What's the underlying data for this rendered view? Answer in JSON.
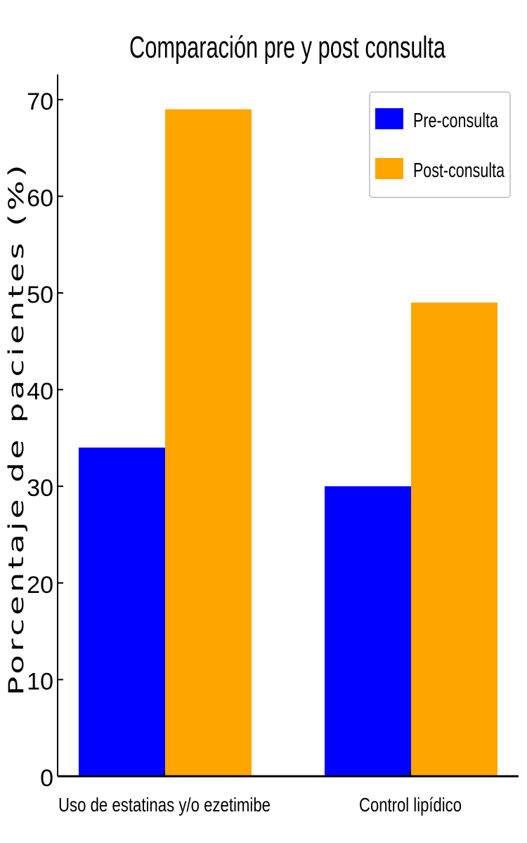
{
  "chart_data": {
    "type": "bar",
    "title": "Comparación pre y post consulta",
    "xlabel": "",
    "ylabel": "Porcentaje de pacientes (%)",
    "categories": [
      "Uso de estatinas y/o ezetimibe",
      "Control lipídico"
    ],
    "series": [
      {
        "name": "Pre-consulta",
        "values": [
          34,
          30
        ],
        "color": "#0000ff"
      },
      {
        "name": "Post-consulta",
        "values": [
          69,
          49
        ],
        "color": "#ffa500"
      }
    ],
    "ylim": [
      0,
      72
    ],
    "yticks": [
      "0",
      "10",
      "20",
      "30",
      "40",
      "50",
      "60",
      "70"
    ],
    "grid": false,
    "legend_position": "top-right"
  }
}
